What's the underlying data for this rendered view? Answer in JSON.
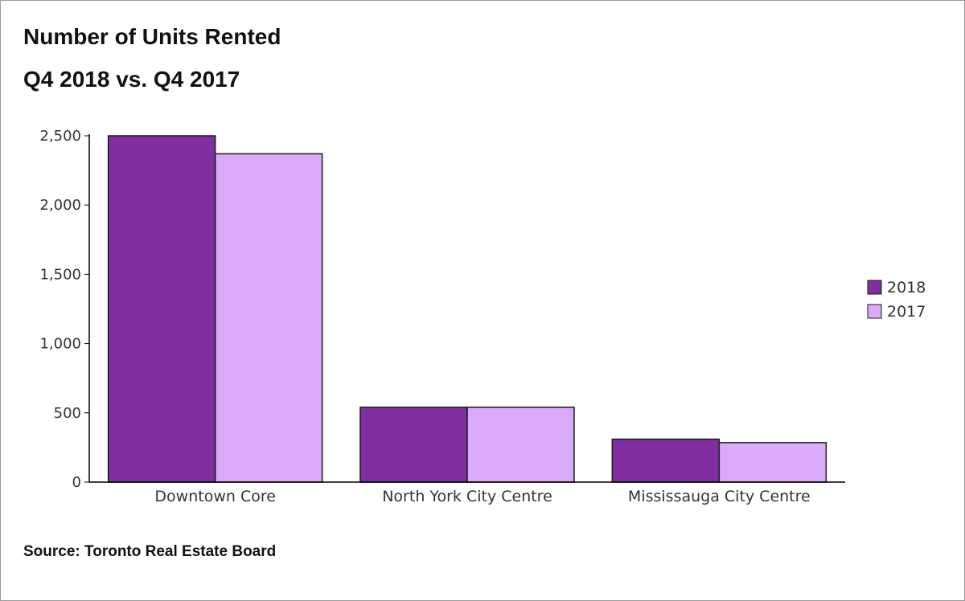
{
  "chart_data": {
    "type": "bar",
    "title": "Number of Units Rented",
    "subtitle": "Q4 2018 vs. Q4 2017",
    "categories": [
      "Downtown Core",
      "North York City Centre",
      "Mississauga City Centre"
    ],
    "series": [
      {
        "name": "2018",
        "values": [
          2500,
          540,
          310
        ],
        "color": "#7f2f9f"
      },
      {
        "name": "2017",
        "values": [
          2370,
          540,
          285
        ],
        "color": "#d8aaf8"
      }
    ],
    "ylim": [
      0,
      2500
    ],
    "yticks": [
      0,
      500,
      1000,
      1500,
      2000,
      2500
    ],
    "ytick_labels": [
      "0",
      "500",
      "1,000",
      "1,500",
      "2,000",
      "2,500"
    ],
    "xlabel": "",
    "ylabel": "",
    "grid": false,
    "legend": "right"
  },
  "source": "Source: Toronto Real Estate Board",
  "colors": {
    "axis": "#000000",
    "bar_outline": "#1a1a1a"
  }
}
